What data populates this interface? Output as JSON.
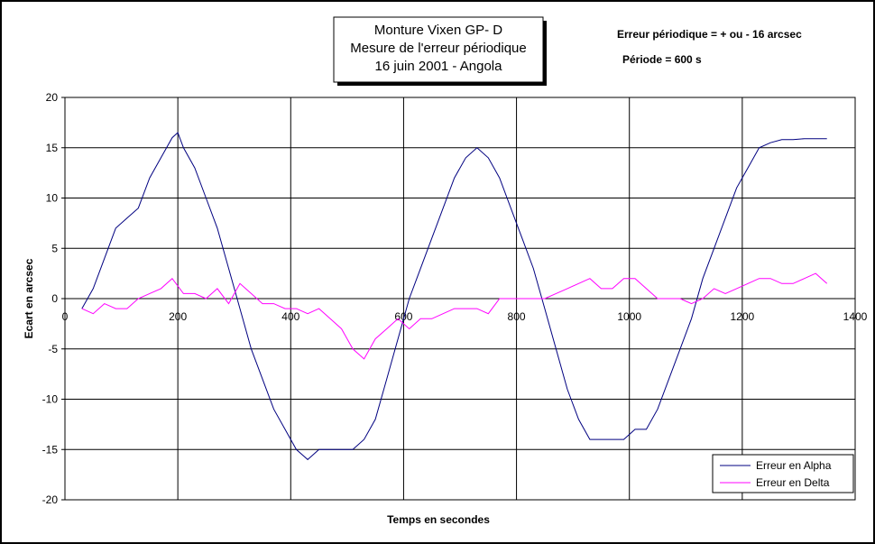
{
  "chart_data": {
    "type": "line",
    "title": [
      "Monture Vixen GP- D",
      "Mesure de l'erreur périodique",
      "16 juin 2001 - Angola"
    ],
    "annotations": [
      "Erreur périodique = + ou - 16 arcsec",
      "Période = 600 s"
    ],
    "xlabel": "Temps en secondes",
    "ylabel": "Ecart en arcsec",
    "xlim": [
      0,
      1400
    ],
    "ylim": [
      -20,
      20
    ],
    "xticks": [
      "0",
      "200",
      "400",
      "600",
      "800",
      "1000",
      "1200",
      "1400"
    ],
    "yticks": [
      "20",
      "15",
      "10",
      "5",
      "0",
      "-5",
      "-10",
      "-15",
      "-20"
    ],
    "grid": true,
    "legend_position": "bottom-right",
    "series": [
      {
        "name": "Erreur en Alpha",
        "color": "#000080",
        "x": [
          30,
          50,
          70,
          90,
          110,
          130,
          150,
          170,
          190,
          200,
          210,
          230,
          250,
          270,
          290,
          310,
          330,
          350,
          370,
          390,
          410,
          430,
          450,
          470,
          490,
          510,
          530,
          550,
          570,
          590,
          610,
          630,
          650,
          670,
          690,
          710,
          730,
          750,
          770,
          790,
          810,
          830,
          850,
          870,
          890,
          910,
          930,
          950,
          970,
          990,
          1010,
          1030,
          1050,
          1070,
          1090,
          1110,
          1130,
          1150,
          1170,
          1190,
          1210,
          1230,
          1250,
          1270,
          1290,
          1310,
          1330,
          1350
        ],
        "y": [
          -1,
          1,
          4,
          7,
          8,
          9,
          12,
          14,
          16,
          16.5,
          15,
          13,
          10,
          7,
          3,
          -1,
          -5,
          -8,
          -11,
          -13,
          -15,
          -16,
          -15,
          -15,
          -15,
          -15,
          -14,
          -12,
          -8,
          -4,
          0,
          3,
          6,
          9,
          12,
          14,
          15,
          14,
          12,
          9,
          6,
          3,
          -1,
          -5,
          -9,
          -12,
          -14,
          -14,
          -14,
          -14,
          -13,
          -13,
          -11,
          -8,
          -5,
          -2,
          2,
          5,
          8,
          11,
          13,
          15,
          15.5,
          15.8,
          15.8,
          15.9,
          15.9,
          15.9
        ],
        "y_actual": [
          -1,
          1,
          4,
          7,
          8,
          9,
          12,
          14,
          16,
          16.5,
          15,
          13,
          10,
          7,
          3,
          -1,
          -5,
          -8,
          -11,
          -13,
          -15,
          -16,
          -15,
          -15,
          -15,
          -15,
          -14,
          -12,
          -8,
          -4,
          0,
          3,
          6,
          9,
          12,
          14,
          15,
          14,
          12,
          9,
          6,
          3,
          -1,
          -5,
          -9,
          -12,
          -14,
          -14,
          -14,
          -14,
          -13,
          -13,
          -11,
          -8,
          -5,
          -2,
          2,
          5,
          8,
          11,
          13,
          15,
          15.5,
          15.8,
          15.8,
          15.9,
          15.9,
          15.9
        ]
      },
      {
        "name": "Erreur en Delta",
        "color": "#ff00ff",
        "x": [
          30,
          50,
          70,
          90,
          110,
          130,
          150,
          170,
          190,
          210,
          230,
          250,
          270,
          290,
          310,
          330,
          350,
          370,
          390,
          410,
          430,
          450,
          470,
          490,
          510,
          530,
          550,
          570,
          590,
          610,
          630,
          650,
          670,
          690,
          710,
          730,
          750,
          770,
          790,
          810,
          830,
          850,
          870,
          890,
          910,
          930,
          950,
          970,
          990,
          1010,
          1030,
          1050,
          1070,
          1090,
          1110,
          1130,
          1150,
          1170,
          1190,
          1210,
          1230,
          1250,
          1270,
          1290,
          1310,
          1330,
          1350
        ],
        "y": [
          -1,
          -1.5,
          -0.5,
          -1,
          -1,
          0,
          0.5,
          1,
          2,
          0.5,
          0.5,
          0,
          1,
          -0.5,
          1.5,
          0.5,
          -0.5,
          -0.5,
          -1,
          -1,
          -1.5,
          -1,
          -2,
          -3,
          -5,
          -6,
          -4,
          -3,
          -2,
          -3,
          -2,
          -2,
          -1.5,
          -1,
          -1,
          -1,
          -1.5,
          0,
          0,
          0,
          0,
          0,
          0.5,
          1,
          1.5,
          2,
          1,
          1,
          2,
          2,
          1,
          0,
          0,
          0,
          -0.5,
          0,
          1,
          0.5,
          1,
          1.5,
          2,
          2,
          1.5,
          1.5,
          2,
          2.5,
          1.5
        ],
        "y_actual": [
          -1,
          -1.5,
          -0.5,
          -1,
          -1,
          0,
          0.5,
          1,
          2,
          0.5,
          0.5,
          0,
          1,
          -0.5,
          1.5,
          0.5,
          -0.5,
          -0.5,
          -1,
          -1,
          -1.5,
          -1,
          -2,
          -3,
          -5,
          -6,
          -4,
          -3,
          -2,
          -3,
          -2,
          -2,
          -1.5,
          -1,
          -1,
          -1,
          -1.5,
          0,
          0,
          0,
          0,
          0,
          0.5,
          1,
          1.5,
          2,
          1,
          1,
          2,
          2,
          1,
          0,
          0,
          0,
          -0.5,
          0,
          1,
          0.5,
          1,
          1.5,
          2,
          2,
          1.5,
          1.5,
          2,
          2.5,
          1.5
        ]
      }
    ]
  }
}
